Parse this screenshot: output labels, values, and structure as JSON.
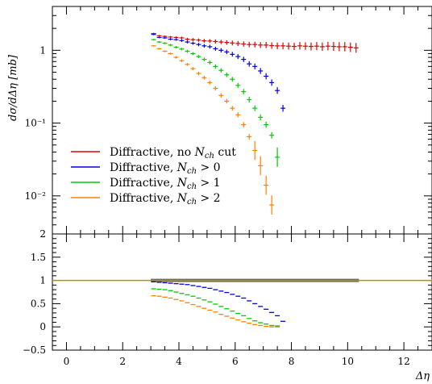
{
  "chart_data": [
    {
      "type": "scatter",
      "panel": "main",
      "ylabel": "dσ/dΔη [mb]",
      "yscale": "log",
      "xlim": [
        -0.5,
        13.0
      ],
      "ylim": [
        0.003,
        4.0
      ],
      "x_ticks": [
        0,
        2,
        4,
        6,
        8,
        10,
        12
      ],
      "y_ticks": [
        {
          "value": 1,
          "label": "1"
        },
        {
          "value": 0.1,
          "label": "10⁻¹"
        },
        {
          "value": 0.01,
          "label": "10⁻²"
        }
      ],
      "legend_position": "lower-left",
      "grid": false,
      "series": [
        {
          "name": "Diffractive, no N_ch cut",
          "name_parts": [
            "Diffractive, no ",
            "N",
            "ch",
            " cut"
          ],
          "color": "#dd0000",
          "x": [
            3.1,
            3.3,
            3.5,
            3.7,
            3.9,
            4.1,
            4.3,
            4.5,
            4.7,
            4.9,
            5.1,
            5.3,
            5.5,
            5.7,
            5.9,
            6.1,
            6.3,
            6.5,
            6.7,
            6.9,
            7.1,
            7.3,
            7.5,
            7.7,
            7.9,
            8.1,
            8.3,
            8.5,
            8.7,
            8.9,
            9.1,
            9.3,
            9.5,
            9.7,
            9.9,
            10.1,
            10.3
          ],
          "y": [
            1.7,
            1.58,
            1.55,
            1.52,
            1.5,
            1.48,
            1.42,
            1.4,
            1.38,
            1.35,
            1.34,
            1.32,
            1.3,
            1.28,
            1.26,
            1.24,
            1.22,
            1.2,
            1.2,
            1.18,
            1.18,
            1.16,
            1.15,
            1.15,
            1.14,
            1.13,
            1.15,
            1.14,
            1.13,
            1.14,
            1.12,
            1.14,
            1.13,
            1.12,
            1.12,
            1.1,
            1.08
          ]
        },
        {
          "name": "Diffractive, N_ch > 0",
          "name_parts": [
            "Diffractive, ",
            "N",
            "ch",
            " > 0"
          ],
          "color": "#0000dd",
          "x": [
            3.1,
            3.3,
            3.5,
            3.7,
            3.9,
            4.1,
            4.3,
            4.5,
            4.7,
            4.9,
            5.1,
            5.3,
            5.5,
            5.7,
            5.9,
            6.1,
            6.3,
            6.5,
            6.7,
            6.9,
            7.1,
            7.3,
            7.5,
            7.7
          ],
          "y": [
            1.65,
            1.5,
            1.48,
            1.42,
            1.4,
            1.36,
            1.3,
            1.25,
            1.2,
            1.15,
            1.12,
            1.05,
            1.0,
            0.95,
            0.88,
            0.82,
            0.75,
            0.65,
            0.6,
            0.52,
            0.44,
            0.36,
            0.28,
            0.16
          ]
        },
        {
          "name": "Diffractive, N_ch > 1",
          "name_parts": [
            "Diffractive, ",
            "N",
            "ch",
            " > 1"
          ],
          "color": "#00cc00",
          "x": [
            3.1,
            3.3,
            3.5,
            3.7,
            3.9,
            4.1,
            4.3,
            4.5,
            4.7,
            4.9,
            5.1,
            5.3,
            5.5,
            5.7,
            5.9,
            6.1,
            6.3,
            6.5,
            6.7,
            6.9,
            7.1,
            7.3,
            7.5
          ],
          "y": [
            1.4,
            1.3,
            1.25,
            1.18,
            1.1,
            1.04,
            0.97,
            0.9,
            0.82,
            0.75,
            0.68,
            0.6,
            0.53,
            0.46,
            0.4,
            0.33,
            0.27,
            0.21,
            0.16,
            0.12,
            0.095,
            0.068,
            0.034
          ]
        },
        {
          "name": "Diffractive, N_ch > 2",
          "name_parts": [
            "Diffractive, ",
            "N",
            "ch",
            " > 2"
          ],
          "color": "#ff8000",
          "x": [
            3.1,
            3.3,
            3.5,
            3.7,
            3.9,
            4.1,
            4.3,
            4.5,
            4.7,
            4.9,
            5.1,
            5.3,
            5.5,
            5.7,
            5.9,
            6.1,
            6.3,
            6.5,
            6.7,
            6.9,
            7.1,
            7.3
          ],
          "y": [
            1.15,
            1.05,
            0.97,
            0.9,
            0.8,
            0.72,
            0.64,
            0.56,
            0.48,
            0.42,
            0.36,
            0.3,
            0.24,
            0.2,
            0.16,
            0.13,
            0.095,
            0.065,
            0.042,
            0.026,
            0.014,
            0.0075
          ]
        }
      ]
    },
    {
      "type": "scatter",
      "panel": "ratio",
      "xlabel": "Δη",
      "xlim": [
        -0.5,
        13.0
      ],
      "ylim": [
        -0.5,
        2.0
      ],
      "x_ticks": [
        0,
        2,
        4,
        6,
        8,
        10,
        12
      ],
      "y_ticks": [
        {
          "value": 2,
          "label": "2"
        },
        {
          "value": 1.5,
          "label": "1.5"
        },
        {
          "value": 1,
          "label": "1"
        },
        {
          "value": 0.5,
          "label": "0.5"
        },
        {
          "value": 0,
          "label": "0"
        },
        {
          "value": -0.5,
          "label": "−0.5"
        }
      ],
      "reference_band": {
        "x": [
          3.0,
          10.4
        ],
        "y": 1.0,
        "color": "#666666"
      },
      "reference_line": {
        "y": 1.0,
        "color": "#cc8800"
      },
      "series": [
        {
          "color": "#0000dd",
          "x": [
            3.1,
            3.3,
            3.5,
            3.7,
            3.9,
            4.1,
            4.3,
            4.5,
            4.7,
            4.9,
            5.1,
            5.3,
            5.5,
            5.7,
            5.9,
            6.1,
            6.3,
            6.5,
            6.7,
            6.9,
            7.1,
            7.3,
            7.5,
            7.7
          ],
          "y": [
            0.97,
            0.96,
            0.95,
            0.94,
            0.93,
            0.92,
            0.91,
            0.89,
            0.87,
            0.85,
            0.83,
            0.8,
            0.77,
            0.74,
            0.7,
            0.66,
            0.62,
            0.56,
            0.5,
            0.44,
            0.38,
            0.31,
            0.24,
            0.12
          ]
        },
        {
          "color": "#00cc00",
          "x": [
            3.1,
            3.3,
            3.5,
            3.7,
            3.9,
            4.1,
            4.3,
            4.5,
            4.7,
            4.9,
            5.1,
            5.3,
            5.5,
            5.7,
            5.9,
            6.1,
            6.3,
            6.5,
            6.7,
            6.9,
            7.1,
            7.3,
            7.5
          ],
          "y": [
            0.82,
            0.81,
            0.8,
            0.78,
            0.75,
            0.72,
            0.69,
            0.66,
            0.62,
            0.58,
            0.54,
            0.49,
            0.44,
            0.39,
            0.34,
            0.29,
            0.24,
            0.18,
            0.13,
            0.09,
            0.06,
            0.03,
            0.02
          ]
        },
        {
          "color": "#ff8000",
          "x": [
            3.1,
            3.3,
            3.5,
            3.7,
            3.9,
            4.1,
            4.3,
            4.5,
            4.7,
            4.9,
            5.1,
            5.3,
            5.5,
            5.7,
            5.9,
            6.1,
            6.3,
            6.5,
            6.7,
            6.9,
            7.1,
            7.3,
            7.5
          ],
          "y": [
            0.67,
            0.66,
            0.64,
            0.62,
            0.59,
            0.56,
            0.52,
            0.48,
            0.44,
            0.4,
            0.36,
            0.32,
            0.27,
            0.23,
            0.19,
            0.15,
            0.11,
            0.08,
            0.05,
            0.03,
            0.01,
            0.0,
            0.0
          ]
        }
      ]
    }
  ]
}
